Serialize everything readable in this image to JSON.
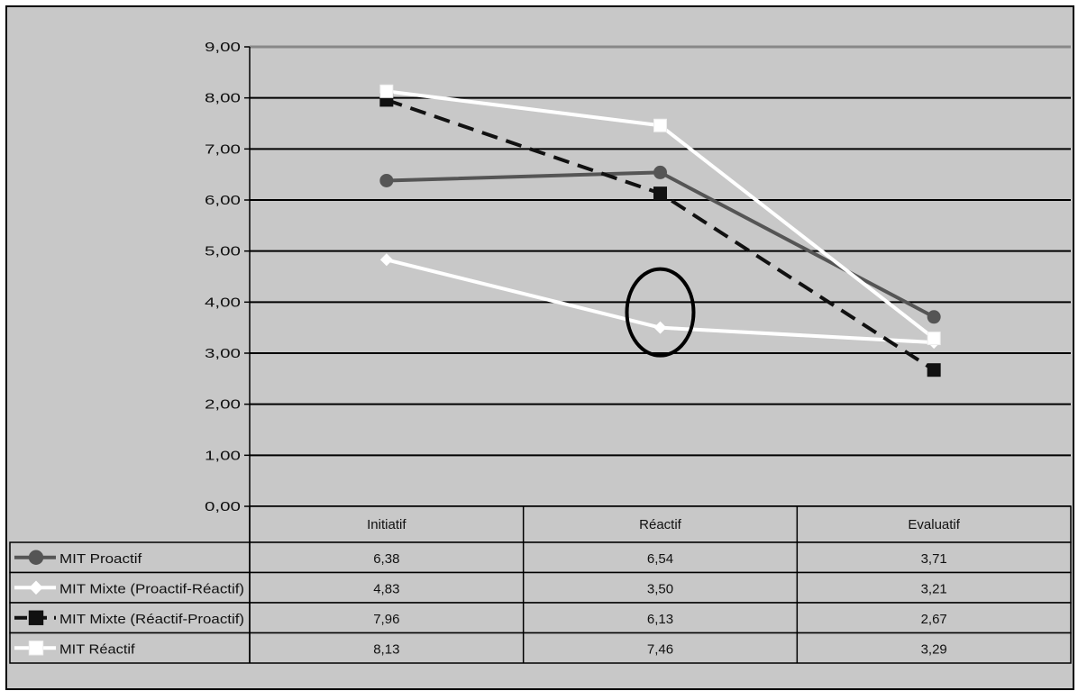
{
  "chart_data": {
    "type": "line",
    "categories": [
      "Initiatif",
      "Réactif",
      "Evaluatif"
    ],
    "ylim": [
      0,
      9
    ],
    "yticks": [
      "0,00",
      "1,00",
      "2,00",
      "3,00",
      "4,00",
      "5,00",
      "6,00",
      "7,00",
      "8,00",
      "9,00"
    ],
    "grid": true,
    "legend_placement": "data table below chart",
    "series": [
      {
        "name": "MIT Proactif",
        "values": [
          6.38,
          6.54,
          3.71
        ],
        "labels": [
          "6,38",
          "6,54",
          "3,71"
        ],
        "color": "#555555",
        "dash": "solid",
        "marker": "circle"
      },
      {
        "name": "MIT Mixte (Proactif-Réactif)",
        "values": [
          4.83,
          3.5,
          3.21
        ],
        "labels": [
          "4,83",
          "3,50",
          "3,21"
        ],
        "color": "#ffffff",
        "dash": "solid",
        "marker": "diamond"
      },
      {
        "name": "MIT Mixte (Réactif-Proactif)",
        "values": [
          7.96,
          6.13,
          2.67
        ],
        "labels": [
          "7,96",
          "6,13",
          "2,67"
        ],
        "color": "#111111",
        "dash": "dashed",
        "marker": "square"
      },
      {
        "name": "MIT Réactif",
        "values": [
          8.13,
          7.46,
          3.29
        ],
        "labels": [
          "8,13",
          "7,46",
          "3,29"
        ],
        "color": "#ffffff",
        "dash": "solid",
        "marker": "square"
      }
    ],
    "annotations": [
      {
        "type": "circle",
        "category": "Réactif",
        "y": 3.5
      }
    ]
  }
}
